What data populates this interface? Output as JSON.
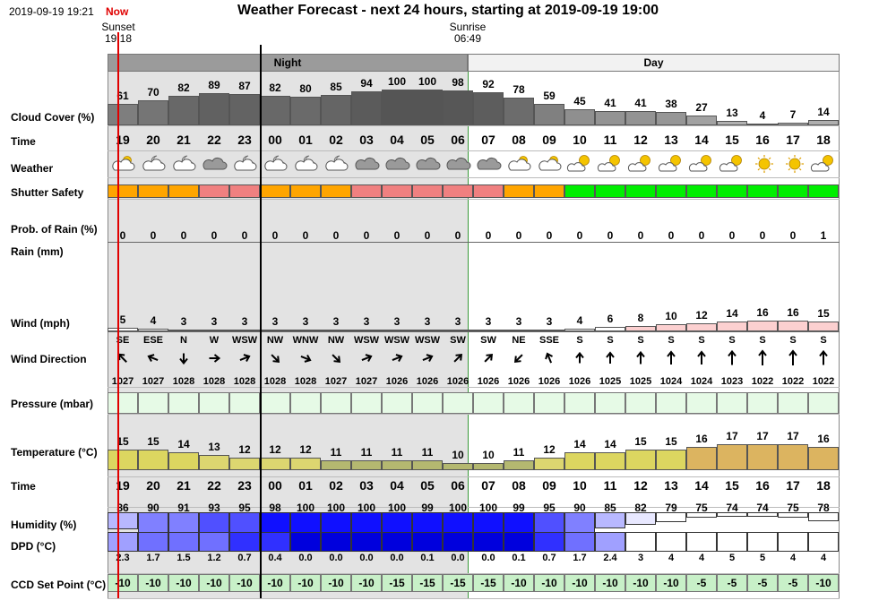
{
  "header": {
    "date": "2019-09-19 19:21",
    "now_label": "Now",
    "title": "Weather Forecast - next 24 hours, starting at 2019-09-19 19:00"
  },
  "sun": {
    "sunset_label": "Sunset",
    "sunset_time": "19:18",
    "sunrise_label": "Sunrise",
    "sunrise_time": "06:49"
  },
  "periods": {
    "night": "Night",
    "day": "Day"
  },
  "labels": {
    "cloud": "Cloud Cover (%)",
    "time": "Time",
    "weather": "Weather",
    "shutter": "Shutter Safety",
    "rain_prob": "Prob. of Rain (%)",
    "rain": "Rain (mm)",
    "wind": "Wind (mph)",
    "wind_dir": "Wind Direction",
    "pressure": "Pressure (mbar)",
    "temperature": "Temperature (°C)",
    "time2": "Time",
    "humidity": "Humidity (%)",
    "dpd": "DPD (°C)",
    "ccd": "CCD Set Point (°C)"
  },
  "colors": {
    "night_bg": "#e3e3e3",
    "period_night": "#9b9b9b",
    "period_day": "#f2f2f2",
    "now_line": "#e00000",
    "safety_orange": "#ffa500",
    "safety_red": "#f08080",
    "safety_green": "#00ee00",
    "pressure_fill": "#e6fae6",
    "ccd_fill": "#c8f0c8"
  },
  "hours": [
    "19",
    "20",
    "21",
    "22",
    "23",
    "00",
    "01",
    "02",
    "03",
    "04",
    "05",
    "06",
    "07",
    "08",
    "09",
    "10",
    "11",
    "12",
    "13",
    "14",
    "15",
    "16",
    "17",
    "18"
  ],
  "cloud": [
    61,
    70,
    82,
    89,
    87,
    82,
    80,
    85,
    94,
    100,
    100,
    98,
    92,
    78,
    59,
    45,
    41,
    41,
    38,
    27,
    13,
    4,
    7,
    14
  ],
  "weather_icons": [
    "cloud-sun-icon",
    "cloud-moon-icon",
    "cloud-moon-icon",
    "cloud-icon",
    "cloud-moon-icon",
    "cloud-moon-icon",
    "cloud-moon-icon",
    "cloud-moon-icon",
    "cloud-icon",
    "cloud-icon",
    "cloud-icon",
    "cloud-icon",
    "cloud-icon",
    "cloud-sun-icon",
    "cloud-sun-icon",
    "sun-cloud-icon",
    "sun-cloud-icon",
    "sun-cloud-icon",
    "sun-cloud-icon",
    "sun-cloud-icon",
    "sun-cloud-icon",
    "sun-icon",
    "sun-icon",
    "sun-cloud-icon"
  ],
  "shutter": [
    "orange",
    "orange",
    "orange",
    "red",
    "red",
    "orange",
    "orange",
    "orange",
    "red",
    "red",
    "red",
    "red",
    "red",
    "orange",
    "orange",
    "green",
    "green",
    "green",
    "green",
    "green",
    "green",
    "green",
    "green",
    "green"
  ],
  "rain_prob": [
    0,
    0,
    0,
    0,
    0,
    0,
    0,
    0,
    0,
    0,
    0,
    0,
    0,
    0,
    0,
    0,
    0,
    0,
    0,
    0,
    0,
    0,
    0,
    1
  ],
  "wind": [
    5,
    4,
    3,
    3,
    3,
    3,
    3,
    3,
    3,
    3,
    3,
    3,
    3,
    3,
    3,
    4,
    6,
    8,
    10,
    12,
    14,
    16,
    16,
    15
  ],
  "wind_dir": [
    "SE",
    "ESE",
    "N",
    "W",
    "WSW",
    "NW",
    "WNW",
    "NW",
    "WSW",
    "WSW",
    "WSW",
    "SW",
    "SW",
    "NE",
    "SSE",
    "S",
    "S",
    "S",
    "S",
    "S",
    "S",
    "S",
    "S",
    "S"
  ],
  "pressure": [
    1027,
    1027,
    1028,
    1028,
    1028,
    1028,
    1028,
    1027,
    1027,
    1026,
    1026,
    1026,
    1026,
    1026,
    1026,
    1026,
    1025,
    1025,
    1024,
    1024,
    1023,
    1022,
    1022,
    1022
  ],
  "temperature": [
    15,
    15,
    14,
    13,
    12,
    12,
    12,
    11,
    11,
    11,
    11,
    10,
    10,
    11,
    12,
    14,
    14,
    15,
    15,
    16,
    17,
    17,
    17,
    16
  ],
  "humidity": [
    86,
    90,
    91,
    93,
    95,
    98,
    100,
    100,
    100,
    100,
    99,
    100,
    100,
    99,
    95,
    90,
    85,
    82,
    79,
    75,
    74,
    74,
    75,
    78
  ],
  "dpd": [
    "2.3",
    "1.7",
    "1.5",
    "1.2",
    "0.7",
    "0.4",
    "0.0",
    "0.0",
    "0.0",
    "0.0",
    "0.1",
    "0.0",
    "0.0",
    "0.1",
    "0.7",
    "1.7",
    "2.4",
    "3",
    "4",
    "4",
    "5",
    "5",
    "4",
    "4"
  ],
  "ccd": [
    -10,
    -10,
    -10,
    -10,
    -10,
    -10,
    -10,
    -10,
    -10,
    -15,
    -15,
    -15,
    -15,
    -10,
    -10,
    -10,
    -10,
    -10,
    -10,
    -5,
    -5,
    -5,
    -5,
    -10
  ]
}
